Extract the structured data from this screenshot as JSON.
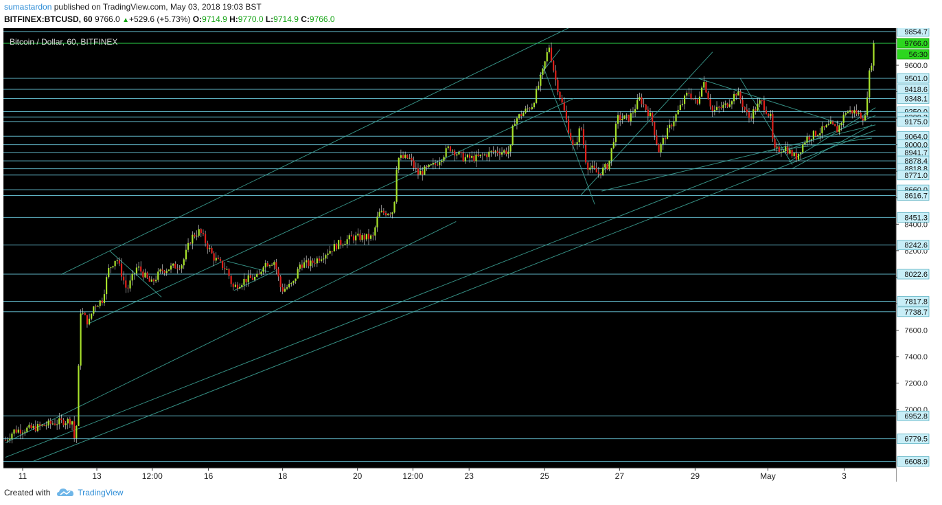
{
  "header": {
    "user": "sumastardon",
    "published_text": "published on TradingView.com, May 03, 2018 19:03 BST",
    "symbol": "BITFINEX:BTCUSD, 60",
    "last": "9766.0",
    "change_arrow": "▲",
    "change": "+529.6 (+5.73%)",
    "o_label": "O:",
    "o_value": "9714.9",
    "h_label": "H:",
    "h_value": "9770.0",
    "l_label": "L:",
    "l_value": "9714.9",
    "c_label": "C:",
    "c_value": "9766.0"
  },
  "footer": {
    "created_with": "Created with",
    "brand": "TradingView"
  },
  "chart_data": {
    "type": "candlestick",
    "title": "Bitcoin / Dollar, 60, BITFINEX",
    "ylim": [
      6560,
      9880
    ],
    "xlim": [
      0,
      1240
    ],
    "y_ticks": [
      7000,
      7200,
      7400,
      7600,
      7800,
      8000,
      8200,
      8400,
      8600,
      8800,
      9000,
      9200,
      9400,
      9600,
      9800
    ],
    "y_tick_labels": [
      "7000.0",
      "7200.0",
      "7400.0",
      "7600.0",
      "",
      "",
      "8200.0",
      "8400.0",
      "",
      "",
      "9000.0",
      "",
      "",
      "9600.0",
      ""
    ],
    "x_ticks": [
      {
        "x": 0,
        "label": "11"
      },
      {
        "x": 107,
        "label": "13"
      },
      {
        "x": 187,
        "label": "12:00"
      },
      {
        "x": 268,
        "label": "16"
      },
      {
        "x": 375,
        "label": "18"
      },
      {
        "x": 483,
        "label": "20"
      },
      {
        "x": 563,
        "label": "12:00"
      },
      {
        "x": 644,
        "label": "23"
      },
      {
        "x": 753,
        "label": "25"
      },
      {
        "x": 861,
        "label": "27"
      },
      {
        "x": 970,
        "label": "29"
      },
      {
        "x": 1075,
        "label": "May"
      },
      {
        "x": 1185,
        "label": "3"
      }
    ],
    "price_levels": [
      {
        "value": 9854.7,
        "label": "9854.7"
      },
      {
        "value": 9766.0,
        "label": "9766.0"
      },
      {
        "value": 9501.0,
        "label": "9501.0"
      },
      {
        "value": 9418.6,
        "label": "9418.6"
      },
      {
        "value": 9348.1,
        "label": "9348.1"
      },
      {
        "value": 9250.0,
        "label": "9250.0"
      },
      {
        "value": 9209.2,
        "label": "9209.2"
      },
      {
        "value": 9175.0,
        "label": "9175.0"
      },
      {
        "value": 9064.0,
        "label": "9064.0"
      },
      {
        "value": 9000.0,
        "label": "9000.0"
      },
      {
        "value": 8941.7,
        "label": "8941.7"
      },
      {
        "value": 8878.4,
        "label": "8878.4"
      },
      {
        "value": 8818.8,
        "label": "8818.8"
      },
      {
        "value": 8771.0,
        "label": "8771.0"
      },
      {
        "value": 8660.0,
        "label": "8660.0"
      },
      {
        "value": 8616.7,
        "label": "8616.7"
      },
      {
        "value": 8451.3,
        "label": "8451.3"
      },
      {
        "value": 8242.6,
        "label": "8242.6"
      },
      {
        "value": 8022.6,
        "label": "8022.6"
      },
      {
        "value": 7817.8,
        "label": "7817.8"
      },
      {
        "value": 7738.7,
        "label": "7738.7"
      },
      {
        "value": 6952.8,
        "label": "6952.8"
      },
      {
        "value": 6779.5,
        "label": "6779.5"
      },
      {
        "value": 6608.9,
        "label": "6608.9"
      }
    ],
    "last_price_label": "9766.0",
    "countdown_label": "56:30",
    "waypoints": [
      [
        0,
        6770
      ],
      [
        12,
        6840
      ],
      [
        40,
        6860
      ],
      [
        55,
        6880
      ],
      [
        70,
        6900
      ],
      [
        96,
        6920
      ],
      [
        99,
        6780
      ],
      [
        103,
        6900
      ],
      [
        108,
        7750
      ],
      [
        120,
        7650
      ],
      [
        127,
        7780
      ],
      [
        140,
        7830
      ],
      [
        148,
        8050
      ],
      [
        160,
        8150
      ],
      [
        175,
        7900
      ],
      [
        190,
        8080
      ],
      [
        210,
        7950
      ],
      [
        225,
        8050
      ],
      [
        255,
        8100
      ],
      [
        268,
        8300
      ],
      [
        280,
        8350
      ],
      [
        300,
        8150
      ],
      [
        320,
        8050
      ],
      [
        328,
        7920
      ],
      [
        345,
        7980
      ],
      [
        365,
        8000
      ],
      [
        372,
        8100
      ],
      [
        388,
        8120
      ],
      [
        398,
        7900
      ],
      [
        415,
        7950
      ],
      [
        425,
        8100
      ],
      [
        440,
        8100
      ],
      [
        480,
        8250
      ],
      [
        500,
        8300
      ],
      [
        530,
        8300
      ],
      [
        538,
        8480
      ],
      [
        560,
        8500
      ],
      [
        565,
        8900
      ],
      [
        582,
        8900
      ],
      [
        595,
        8780
      ],
      [
        620,
        8850
      ],
      [
        640,
        8980
      ],
      [
        660,
        8900
      ],
      [
        680,
        8900
      ],
      [
        705,
        8950
      ],
      [
        728,
        8950
      ],
      [
        733,
        9180
      ],
      [
        760,
        9300
      ],
      [
        775,
        9550
      ],
      [
        784,
        9750
      ],
      [
        793,
        9500
      ],
      [
        806,
        9250
      ],
      [
        820,
        8950
      ],
      [
        830,
        9150
      ],
      [
        838,
        8850
      ],
      [
        855,
        8780
      ],
      [
        870,
        8850
      ],
      [
        883,
        9200
      ],
      [
        900,
        9200
      ],
      [
        915,
        9350
      ],
      [
        932,
        9200
      ],
      [
        942,
        8950
      ],
      [
        950,
        9050
      ],
      [
        965,
        9200
      ],
      [
        985,
        9400
      ],
      [
        998,
        9300
      ],
      [
        1006,
        9500
      ],
      [
        1020,
        9250
      ],
      [
        1040,
        9300
      ],
      [
        1055,
        9400
      ],
      [
        1072,
        9200
      ],
      [
        1090,
        9330
      ],
      [
        1104,
        9200
      ],
      [
        1108,
        8950
      ],
      [
        1125,
        8980
      ],
      [
        1140,
        8900
      ],
      [
        1155,
        9050
      ],
      [
        1175,
        9100
      ],
      [
        1190,
        9150
      ],
      [
        1200,
        9110
      ],
      [
        1212,
        9250
      ],
      [
        1225,
        9250
      ],
      [
        1240,
        9200
      ],
      [
        1245,
        9500
      ],
      [
        1254,
        9765
      ]
    ],
    "trendlines": [
      [
        [
          80,
          8020
        ],
        [
          855,
          9990
        ]
      ],
      [
        [
          0,
          6640
        ],
        [
          1255,
          9220
        ]
      ],
      [
        [
          40,
          6610
        ],
        [
          1255,
          9110
        ]
      ],
      [
        [
          0,
          6750
        ],
        [
          650,
          8420
        ]
      ],
      [
        [
          120,
          7650
        ],
        [
          820,
          9350
        ]
      ],
      [
        [
          330,
          7900
        ],
        [
          390,
          8050
        ]
      ],
      [
        [
          320,
          8120
        ],
        [
          380,
          8040
        ]
      ],
      [
        [
          150,
          8200
        ],
        [
          225,
          7850
        ]
      ],
      [
        [
          775,
          9600
        ],
        [
          850,
          8550
        ]
      ],
      [
        [
          770,
          9520
        ],
        [
          800,
          9720
        ]
      ],
      [
        [
          830,
          8620
        ],
        [
          1020,
          9700
        ]
      ],
      [
        [
          860,
          8650
        ],
        [
          1255,
          9150
        ]
      ],
      [
        [
          1130,
          8870
        ],
        [
          1255,
          9280
        ]
      ],
      [
        [
          1000,
          9500
        ],
        [
          1210,
          9150
        ]
      ],
      [
        [
          1060,
          9500
        ],
        [
          1135,
          8850
        ]
      ],
      [
        [
          1100,
          8950
        ],
        [
          1250,
          9050
        ]
      ],
      [
        [
          1135,
          8820
        ],
        [
          1250,
          9150
        ]
      ]
    ]
  }
}
